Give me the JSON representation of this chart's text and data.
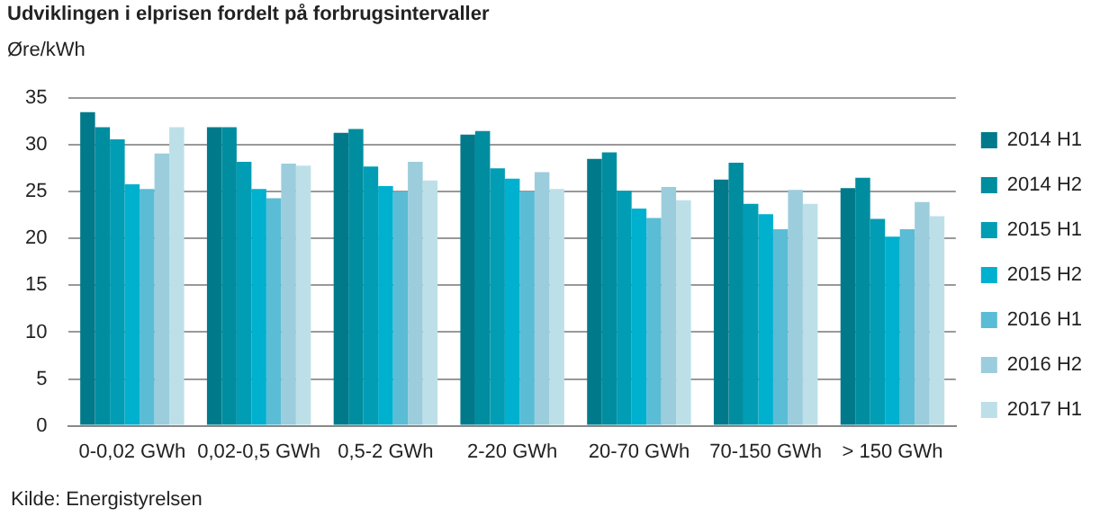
{
  "chart_data": {
    "type": "bar",
    "title": "Udviklingen i elprisen fordelt på forbrugsintervaller",
    "ylabel": "Øre/kWh",
    "categories": [
      "0-0,02 GWh",
      "0,02-0,5 GWh",
      "0,5-2 GWh",
      "2-20 GWh",
      "20-70 GWh",
      "70-150 GWh",
      "> 150 GWh"
    ],
    "series": [
      {
        "name": "2014 H1",
        "color": "#007a8a",
        "values": [
          33.5,
          31.9,
          31.3,
          31.1,
          28.5,
          26.3,
          25.4
        ]
      },
      {
        "name": "2014 H2",
        "color": "#008da0",
        "values": [
          31.9,
          31.9,
          31.7,
          31.5,
          29.2,
          28.1,
          26.5
        ]
      },
      {
        "name": "2015 H1",
        "color": "#009db5",
        "values": [
          30.6,
          28.2,
          27.7,
          27.5,
          25.1,
          23.7,
          22.1
        ]
      },
      {
        "name": "2015 H2",
        "color": "#00b0cf",
        "values": [
          25.8,
          25.3,
          25.6,
          26.4,
          23.2,
          22.6,
          20.2
        ]
      },
      {
        "name": "2016 H1",
        "color": "#5bbcd6",
        "values": [
          25.3,
          24.3,
          25.0,
          25.0,
          22.2,
          21.0,
          21.0
        ]
      },
      {
        "name": "2016 H2",
        "color": "#9ccddd",
        "values": [
          29.1,
          28.0,
          28.2,
          27.1,
          25.5,
          25.2,
          23.9
        ]
      },
      {
        "name": "2017 H1",
        "color": "#bde0e8",
        "values": [
          31.9,
          27.8,
          26.2,
          25.3,
          24.1,
          23.7,
          22.4
        ]
      }
    ],
    "ylim": [
      0,
      35
    ],
    "yticks": [
      0,
      5,
      10,
      15,
      20,
      25,
      30,
      35
    ],
    "grid": "y",
    "legend": "right",
    "annotations": [
      "Kilde: Energistyrelsen"
    ]
  }
}
